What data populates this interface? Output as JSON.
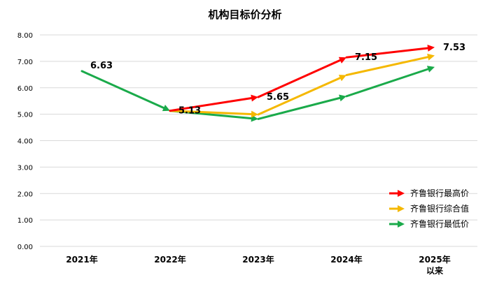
{
  "chart_data": {
    "type": "line",
    "title": "机构目标价分析",
    "categories": [
      {
        "line1": "2021年",
        "line2": ""
      },
      {
        "line1": "2022年",
        "line2": ""
      },
      {
        "line1": "2023年",
        "line2": ""
      },
      {
        "line1": "2024年",
        "line2": ""
      },
      {
        "line1": "2025年",
        "line2": "以来"
      }
    ],
    "ylim": [
      0,
      8
    ],
    "yticks": [
      "0.00",
      "1.00",
      "2.00",
      "3.00",
      "4.00",
      "5.00",
      "6.00",
      "7.00",
      "8.00"
    ],
    "grid": true,
    "legend_position": "bottom-right",
    "series": [
      {
        "name": "齐鲁银行最高价",
        "color": "#ff0000",
        "values": [
          null,
          5.13,
          5.65,
          7.15,
          7.53
        ]
      },
      {
        "name": "齐鲁银行综合值",
        "color": "#f5b800",
        "values": [
          null,
          5.13,
          4.99,
          6.48,
          7.22
        ]
      },
      {
        "name": "齐鲁银行最低价",
        "color": "#1aaa4a",
        "values": [
          6.63,
          5.13,
          4.82,
          5.68,
          6.79
        ]
      }
    ],
    "data_labels": [
      {
        "series": 2,
        "index": 0,
        "text": "6.63"
      },
      {
        "series": 0,
        "index": 1,
        "text": "5.13"
      },
      {
        "series": 0,
        "index": 2,
        "text": "5.65"
      },
      {
        "series": 0,
        "index": 3,
        "text": "7.15"
      },
      {
        "series": 0,
        "index": 4,
        "text": "7.53"
      }
    ]
  }
}
